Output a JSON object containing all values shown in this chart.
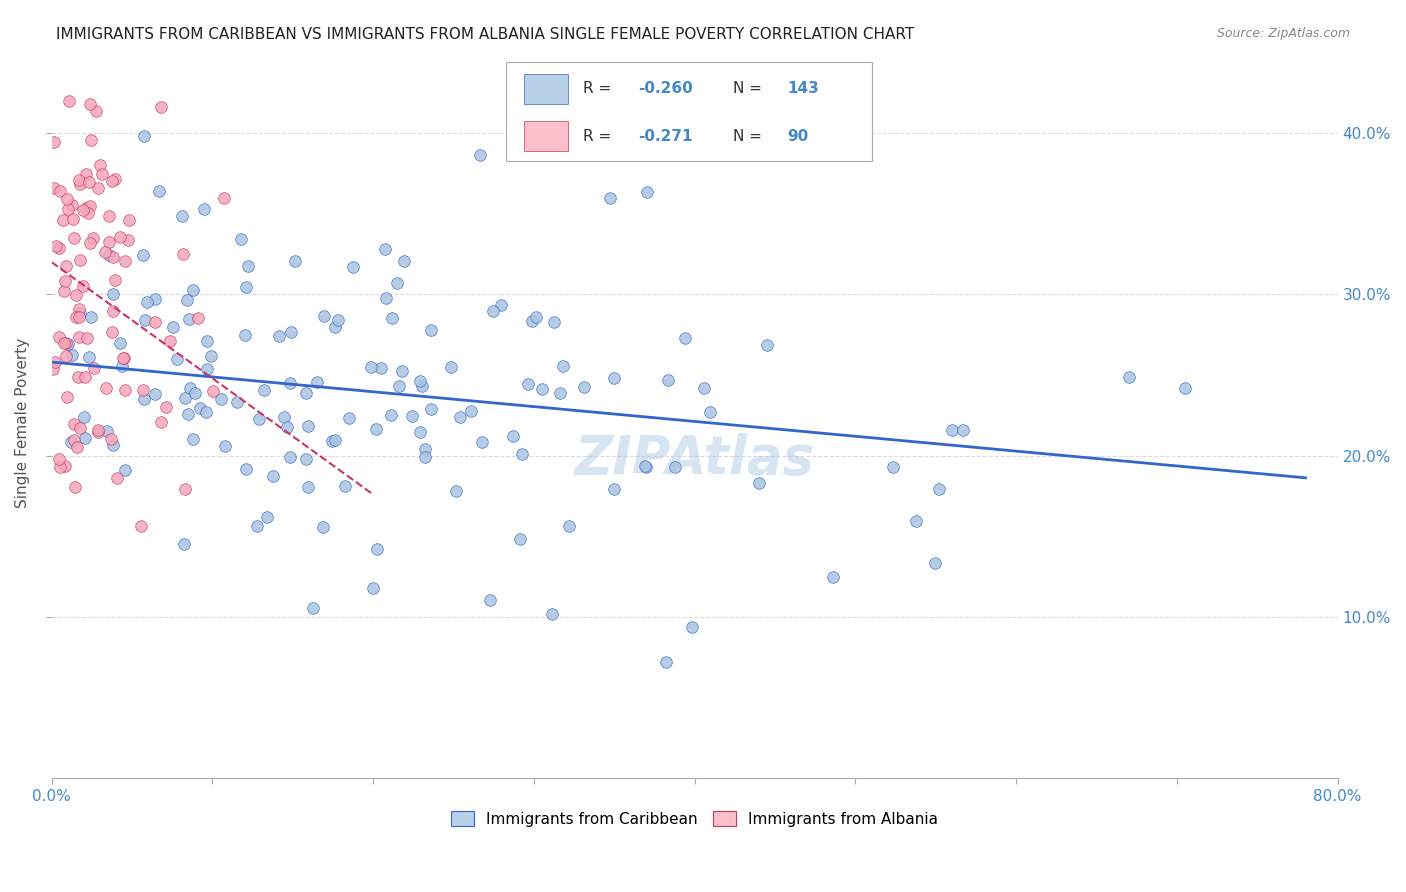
{
  "title": "IMMIGRANTS FROM CARIBBEAN VS IMMIGRANTS FROM ALBANIA SINGLE FEMALE POVERTY CORRELATION CHART",
  "source": "Source: ZipAtlas.com",
  "ylabel": "Single Female Poverty",
  "yticks": [
    "10.0%",
    "20.0%",
    "30.0%",
    "40.0%"
  ],
  "ytick_vals": [
    0.1,
    0.2,
    0.3,
    0.4
  ],
  "xtick_vals": [
    0.0,
    0.1,
    0.2,
    0.3,
    0.4,
    0.5,
    0.6,
    0.7,
    0.8
  ],
  "xlim": [
    0.0,
    0.8
  ],
  "ylim": [
    0.0,
    0.44
  ],
  "legend1_R": "-0.260",
  "legend1_N": "143",
  "legend2_R": "-0.271",
  "legend2_N": "90",
  "blue_color": "#a8c4e0",
  "blue_line_color": "#3366cc",
  "pink_color": "#f4a7b9",
  "pink_line_color": "#cc3366",
  "watermark": "ZIPAtlas",
  "legend_box_blue": "#b8d0e8",
  "legend_box_pink": "#f9c0cc",
  "title_fontsize": 11,
  "axis_label_color": "#4488cc",
  "grid_color": "#cccccc",
  "background_color": "#ffffff",
  "seed_blue": 42,
  "seed_pink": 99,
  "N_blue": 143,
  "N_pink": 90,
  "blue_slope": -0.092,
  "blue_intercept": 0.258,
  "pink_slope": -0.72,
  "pink_intercept": 0.32
}
